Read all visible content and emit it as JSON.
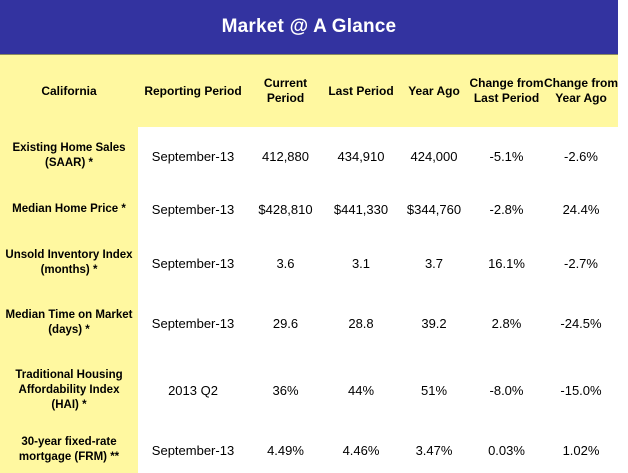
{
  "title": "Market @ A Glance",
  "headers": {
    "region": "California",
    "period": "Reporting Period",
    "current": "Current Period",
    "last": "Last Period",
    "year_ago": "Year Ago",
    "chg_last": "Change from Last Period",
    "chg_year": "Change from Year Ago"
  },
  "rows": [
    {
      "label": "Existing Home Sales (SAAR)  *",
      "period": "September-13",
      "current": "412,880",
      "last": "434,910",
      "year_ago": "424,000",
      "chg_last": "-5.1%",
      "chg_year": "-2.6%"
    },
    {
      "label": "Median Home Price  *",
      "period": "September-13",
      "current": "$428,810",
      "last": "$441,330",
      "year_ago": "$344,760",
      "chg_last": "-2.8%",
      "chg_year": "24.4%"
    },
    {
      "label": "Unsold Inventory Index (months)  *",
      "period": "September-13",
      "current": "3.6",
      "last": "3.1",
      "year_ago": "3.7",
      "chg_last": "16.1%",
      "chg_year": "-2.7%"
    },
    {
      "label": "Median Time on Market (days)  *",
      "period": "September-13",
      "current": "29.6",
      "last": "28.8",
      "year_ago": "39.2",
      "chg_last": "2.8%",
      "chg_year": "-24.5%"
    },
    {
      "label": "Traditional Housing Affordability Index (HAI) *",
      "period": "2013 Q2",
      "current": "36%",
      "last": "44%",
      "year_ago": "51%",
      "chg_last": "-8.0%",
      "chg_year": "-15.0%"
    },
    {
      "label": "30-year fixed-rate mortgage (FRM)  **",
      "period": "September-13",
      "current": "4.49%",
      "last": "4.46%",
      "year_ago": "3.47%",
      "chg_last": "0.03%",
      "chg_year": "1.02%"
    }
  ],
  "colors": {
    "title_bg": "#3333a0",
    "header_yellow": "#fff8a0"
  }
}
